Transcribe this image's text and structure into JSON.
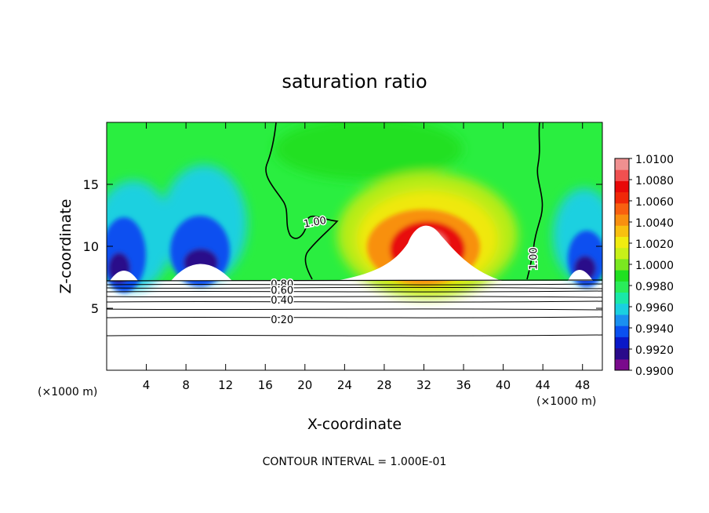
{
  "chart_data": {
    "type": "heatmap",
    "title": "saturation ratio",
    "xlabel": "X-coordinate",
    "ylabel": "Z-coordinate",
    "x_unit_left": "(×1000 m)",
    "x_unit_right": "(×1000 m)",
    "footer": "CONTOUR INTERVAL = 1.000E-01",
    "xlim": [
      0,
      50
    ],
    "ylim": [
      0,
      20
    ],
    "x_ticks": [
      4,
      8,
      12,
      16,
      20,
      24,
      28,
      32,
      36,
      40,
      44,
      48
    ],
    "y_ticks": [
      5,
      10,
      15
    ],
    "colorbar": {
      "min": 0.99,
      "max": 1.01,
      "labels": [
        "1.0100",
        "1.0080",
        "1.0060",
        "1.0040",
        "1.0020",
        "1.0000",
        "0.9980",
        "0.9960",
        "0.9940",
        "0.9920",
        "0.9900"
      ],
      "colors": [
        "#7a0a8c",
        "#2a0a8a",
        "#0a18c8",
        "#0a50f0",
        "#1a90f0",
        "#1ad0e0",
        "#1ae8a8",
        "#2aec5a",
        "#20e020",
        "#7ae820",
        "#c8f018",
        "#f0ec10",
        "#f8c010",
        "#f89010",
        "#f86010",
        "#f02808",
        "#e80808",
        "#f05050",
        "#f09090"
      ]
    },
    "contour_labels": [
      {
        "text": "1.00",
        "x": 21.0,
        "z": 12.0
      },
      {
        "text": "1.00",
        "x": 43.0,
        "z": 9.0
      },
      {
        "text": "0.80",
        "x": 17.7,
        "z": 7.0
      },
      {
        "text": "0.60",
        "x": 17.7,
        "z": 6.5
      },
      {
        "text": "0.40",
        "x": 17.7,
        "z": 5.7
      },
      {
        "text": "0.20",
        "x": 17.7,
        "z": 4.1
      }
    ]
  }
}
